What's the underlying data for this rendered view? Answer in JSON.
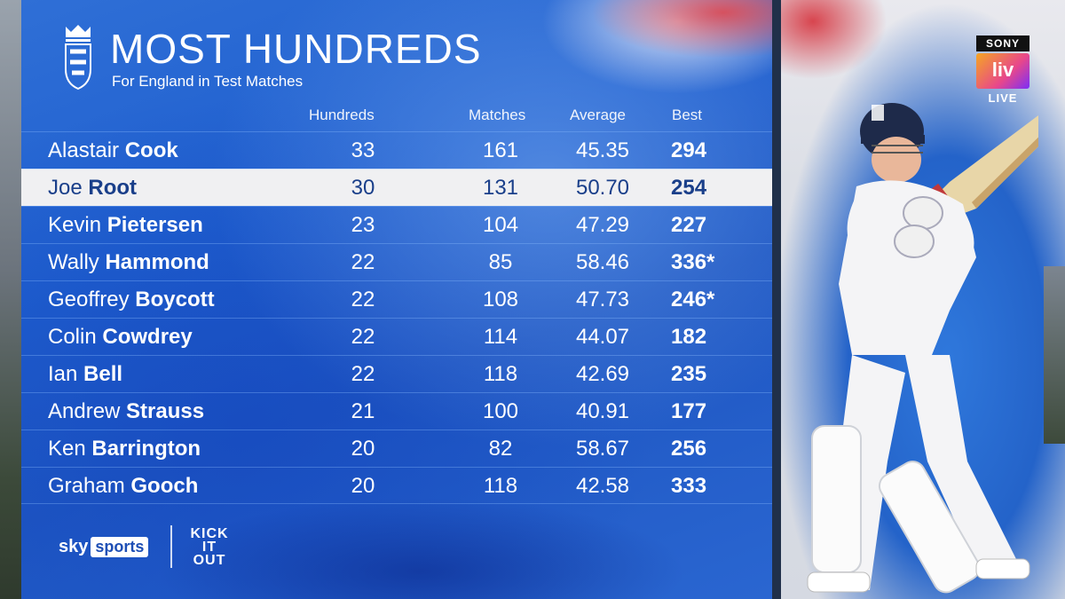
{
  "header": {
    "title": "MOST HUNDREDS",
    "subtitle": "For England in Test Matches",
    "crest_icon": "three-lions-crest-icon"
  },
  "columns": {
    "hundreds": "Hundreds",
    "matches": "Matches",
    "average": "Average",
    "best": "Best"
  },
  "rows": [
    {
      "first": "Alastair",
      "last": "Cook",
      "hundreds": "33",
      "matches": "161",
      "average": "45.35",
      "best": "294",
      "highlight": false
    },
    {
      "first": "Joe",
      "last": "Root",
      "hundreds": "30",
      "matches": "131",
      "average": "50.70",
      "best": "254",
      "highlight": true
    },
    {
      "first": "Kevin",
      "last": "Pietersen",
      "hundreds": "23",
      "matches": "104",
      "average": "47.29",
      "best": "227",
      "highlight": false
    },
    {
      "first": "Wally",
      "last": "Hammond",
      "hundreds": "22",
      "matches": "85",
      "average": "58.46",
      "best": "336*",
      "highlight": false
    },
    {
      "first": "Geoffrey",
      "last": "Boycott",
      "hundreds": "22",
      "matches": "108",
      "average": "47.73",
      "best": "246*",
      "highlight": false
    },
    {
      "first": "Colin",
      "last": "Cowdrey",
      "hundreds": "22",
      "matches": "114",
      "average": "44.07",
      "best": "182",
      "highlight": false
    },
    {
      "first": "Ian",
      "last": "Bell",
      "hundreds": "22",
      "matches": "118",
      "average": "42.69",
      "best": "235",
      "highlight": false
    },
    {
      "first": "Andrew",
      "last": "Strauss",
      "hundreds": "21",
      "matches": "100",
      "average": "40.91",
      "best": "177",
      "highlight": false
    },
    {
      "first": "Ken",
      "last": "Barrington",
      "hundreds": "20",
      "matches": "82",
      "average": "58.67",
      "best": "256",
      "highlight": false
    },
    {
      "first": "Graham",
      "last": "Gooch",
      "hundreds": "20",
      "matches": "118",
      "average": "42.58",
      "best": "333",
      "highlight": false
    }
  ],
  "footer": {
    "sky": "sky",
    "sports": "sports",
    "kick": [
      "KICK",
      "IT",
      "OUT"
    ]
  },
  "broadcaster": {
    "sony": "SONY",
    "liv": "liv",
    "live": "LIVE"
  },
  "colors": {
    "panel_blue": "#1f5fcf",
    "highlight_row": "#f0f0f2",
    "highlight_text": "#1a3f8a"
  }
}
